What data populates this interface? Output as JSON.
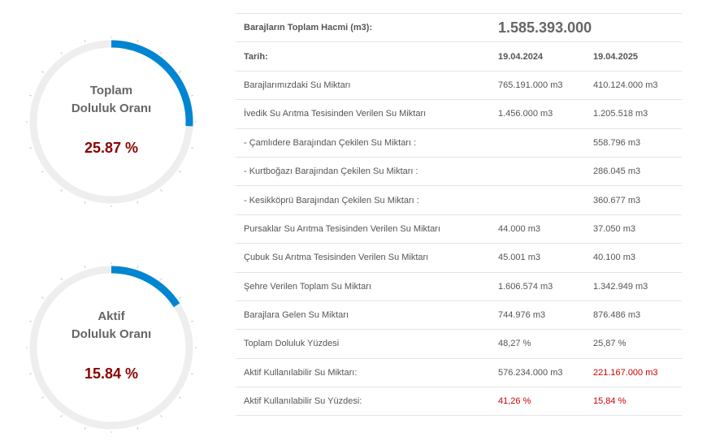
{
  "gauges": [
    {
      "label_line1": "Toplam",
      "label_line2": "Doluluk Oranı",
      "value_text": "25.87 %",
      "fill_percent": 25.87
    },
    {
      "label_line1": "Aktif",
      "label_line2": "Doluluk Oranı",
      "value_text": "15.84 %",
      "fill_percent": 15.84
    }
  ],
  "colors": {
    "arc_track": "#eeeeee",
    "arc_fill": "#0086d1",
    "value_text": "#8b0000",
    "highlight_red": "#cc0000"
  },
  "table": {
    "total_volume_label": "Barajların Toplam Hacmi (m3):",
    "total_volume_value": "1.585.393.000",
    "date_label": "Tarih:",
    "date_1": "19.04.2024",
    "date_2": "19.04.2025",
    "rows": [
      {
        "label": "Barajlarımızdaki Su Miktarı",
        "v1": "765.191.000 m3",
        "v2": "410.124.000 m3"
      },
      {
        "label": "İvedik Su Arıtma Tesisinden Verilen Su Miktarı",
        "v1": "1.456.000 m3",
        "v2": "1.205.518 m3"
      },
      {
        "label": "- Çamlıdere Barajından Çekilen Su Miktarı :",
        "v1": "",
        "v2": "558.796 m3"
      },
      {
        "label": "- Kurtboğazı Barajından Çekilen Su Miktarı :",
        "v1": "",
        "v2": "286.045 m3"
      },
      {
        "label": "- Kesikköprü Barajından Çekilen Su Miktarı :",
        "v1": "",
        "v2": "360.677 m3"
      },
      {
        "label": "Pursaklar Su Arıtma Tesisinden Verilen Su Miktarı",
        "v1": "44.000 m3",
        "v2": "37.050 m3"
      },
      {
        "label": "Çubuk Su Arıtma Tesisinden Verilen Su Miktarı",
        "v1": "45.001 m3",
        "v2": "40.100 m3"
      },
      {
        "label": "Şehre Verilen Toplam Su Miktarı",
        "v1": "1.606.574 m3",
        "v2": "1.342.949 m3"
      },
      {
        "label": "Barajlara Gelen Su Miktarı",
        "v1": "744.976 m3",
        "v2": "876.486 m3"
      },
      {
        "label": "Toplam Doluluk Yüzdesi",
        "v1": "48,27 %",
        "v2": "25,87 %"
      },
      {
        "label": "Aktif Kullanılabilir Su Miktarı:",
        "v1": "576.234.000 m3",
        "v2": "221.167.000 m3"
      },
      {
        "label": "Aktif Kullanılabilir Su Yüzdesi:",
        "v1": "41,26 %",
        "v2": "15,84 %"
      }
    ]
  }
}
